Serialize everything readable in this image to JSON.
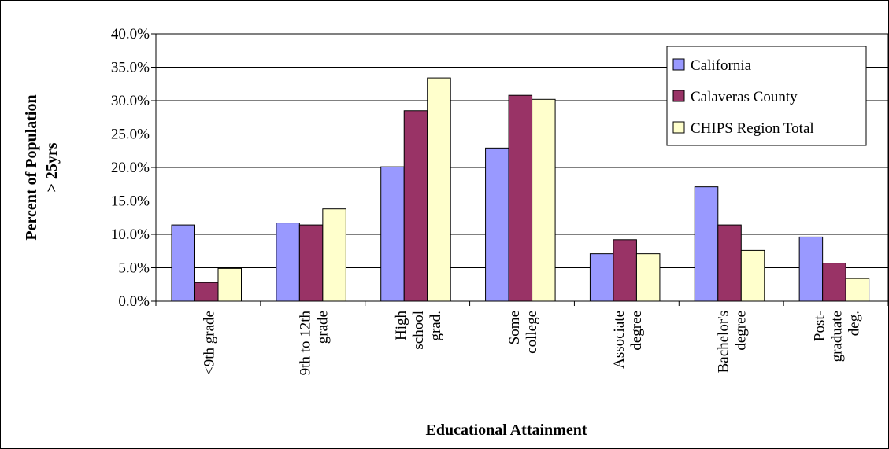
{
  "chart_data": {
    "type": "bar",
    "title": "",
    "xlabel": "Educational Attainment",
    "ylabel_lines": [
      "Percent of Population",
      "> 25yrs"
    ],
    "ylim": [
      0,
      40
    ],
    "y_ticks": [
      "0.0%",
      "5.0%",
      "10.0%",
      "15.0%",
      "20.0%",
      "25.0%",
      "30.0%",
      "35.0%",
      "40.0%"
    ],
    "grid": true,
    "legend_position": "top-right",
    "categories": [
      [
        "<9th grade"
      ],
      [
        "9th to 12th",
        "grade"
      ],
      [
        "High",
        "school",
        "grad."
      ],
      [
        "Some",
        "college"
      ],
      [
        "Associate",
        "degree"
      ],
      [
        "Bachelor's",
        "degree"
      ],
      [
        "Post-",
        "graduate",
        "deg."
      ]
    ],
    "series": [
      {
        "name": "California",
        "color": "#9999ff",
        "values": [
          11.4,
          11.7,
          20.1,
          22.9,
          7.1,
          17.1,
          9.6
        ]
      },
      {
        "name": "Calaveras County",
        "color": "#993366",
        "values": [
          2.8,
          11.4,
          28.5,
          30.8,
          9.2,
          11.4,
          5.7
        ]
      },
      {
        "name": "CHIPS Region Total",
        "color": "#ffffcc",
        "values": [
          4.9,
          13.8,
          33.4,
          30.2,
          7.1,
          7.6,
          3.4
        ]
      }
    ]
  }
}
